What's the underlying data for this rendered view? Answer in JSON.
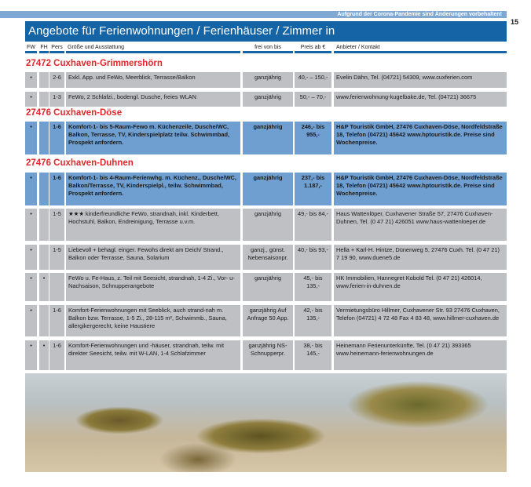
{
  "banner": "Aufgrund der Corona-Pandemie sind Änderungen vorbehalten!",
  "page_number": "15",
  "title": "Angebote für Ferienwohnungen / Ferienhäuser / Zimmer in",
  "headers": [
    "FW",
    "FH",
    "Pers",
    "Größe und Ausstattung",
    "frei von bis",
    "Preis ab €",
    "Anbieter / Kontakt"
  ],
  "sections": [
    "27472 Cuxhaven-Grimmershörn",
    "27476 Cuxhaven-Döse",
    "27476 Cuxhaven-Duhnen"
  ],
  "rows": [
    {
      "style": "grey",
      "fw": "•",
      "fh": "",
      "pers": "2-6",
      "desc": "Exkl. App. und FeWo, Meerblick, Terrasse/Balkon",
      "frei": "ganzjährig",
      "preis": "40,- – 150,-",
      "kontakt": "Evelin Dähn, Tel. (04721) 54309, www.cuxferien.com"
    },
    {
      "style": "grey",
      "fw": "•",
      "fh": "",
      "pers": "1-3",
      "desc": "FeWo, 2 Schlafzi., bodengl. Dusche, freies WLAN",
      "frei": "ganzjährig",
      "preis": "50,- – 70,-",
      "kontakt": "www.ferienwohnung-kugelbake.de, Tel. (04721) 36675"
    },
    {
      "style": "blue",
      "fw": "•",
      "fh": "",
      "pers": "1-6",
      "desc": "Komfort-1- bis 5-Raum-Fewo m. Küchenzeile, Dusche/WC, Balkon, Terrasse, TV, Kinderspielplatz teilw. Schwimmbad, Prospekt anfordern.",
      "frei": "ganzjährig",
      "preis": "246,- bis 955,-",
      "kontakt": "H&P Touristik GmbH, 27476 Cuxhaven-Döse, Nordfeldstraße 18, Telefon (04721) 45642 www.hptouristik.de. Preise sind Wochenpreise."
    },
    {
      "style": "blue",
      "fw": "•",
      "fh": "",
      "pers": "1-6",
      "desc": "Komfort-1- bis 4-Raum-Ferienwhg. m. Küchenz., Dusche/WC, Balkon/Terrasse, TV, Kinderspielpl., teilw. Schwimmbad, Prospekt anfordern.",
      "frei": "ganzjährig",
      "preis": "237,- bis 1.187,-",
      "kontakt": "H&P Touristik GmbH, 27476 Cuxhaven-Döse, Nordfeldstraße 18, Telefon (04721) 45642 www.hptouristik.de. Preise sind Wochenpreise."
    },
    {
      "style": "grey",
      "fw": "•",
      "fh": "",
      "pers": "1-5",
      "desc": "★★★ kinderfreundliche FeWo, strandnah, inkl. Kinderbett, Hochstuhl, Balkon, Endreinigung, Terrasse u.v.m.",
      "frei": "ganzjährig",
      "preis": "49,- bis 84,-",
      "kontakt": "Haus Wattenlöper, Cuxhavener Straße 57, 27476 Cuxhaven-Duhnen, Tel. (0 47 21) 426051 www.haus-wattenloeper.de"
    },
    {
      "style": "grey",
      "fw": "•",
      "fh": "",
      "pers": "1-5",
      "desc": "Liebevoll + behagl. einger. Fewohs direkt am Deich/ Strand., Balkon oder Terrasse, Sauna, Solarium",
      "frei": "ganzj., günst. Nebensaisonpr.",
      "preis": "40,- bis 93,-",
      "kontakt": "Hella + Karl-H. Hintze, Dünenweg 5, 27476 Cuxh. Tel. (0 47 21) 7 19 90, www.duene5.de"
    },
    {
      "style": "grey",
      "fw": "•",
      "fh": "•",
      "pers": "",
      "desc": "FeWo u. Fe-Haus, z. Teil mit Seesicht, strandnah, 1-4 Zi., Vor- u- Nachsaison, Schnupperangebote",
      "frei": "ganzjährig",
      "preis": "45,- bis 135,-",
      "kontakt": "HK Immobilien, Hannegret Kobold Tel. (0 47 21) 426014, www.ferien-in-duhnen.de"
    },
    {
      "style": "grey",
      "fw": "•",
      "fh": "",
      "pers": "1-6",
      "desc": "Komfort-Ferienwohnungen mit Seeblick, auch strand-nah m. Balkon bzw. Terrasse, 1-5 Zi., 28-115 m², Schwimmb., Sauna, allergikergerecht, keine Haustiere",
      "frei": "ganzjährig Auf Anfrage 50 App.",
      "preis": "42,- bis 135,-",
      "kontakt": "Vermietungsbüro Hillmer, Cuxhavener Str. 93 27476 Cuxhaven, Telefon (04721) 4 72 48 Fax 4 83 48, www.hillmer-cuxhaven.de"
    },
    {
      "style": "grey",
      "fw": "•",
      "fh": "•",
      "pers": "1-6",
      "desc": "Komfort-Ferienwohnungen und -häuser, strandnah, teilw. mit direkter Seesicht, teilw. mit W-LAN, 1-4 Schlafzimmer",
      "frei": "ganzjährig NS-Schnupperpr.",
      "preis": "38,- bis 145,-",
      "kontakt": "Heinemann Ferienunterkünfte, Tel. (0 47 21) 393365 www.heinemann-ferienwohnungen.de"
    }
  ]
}
